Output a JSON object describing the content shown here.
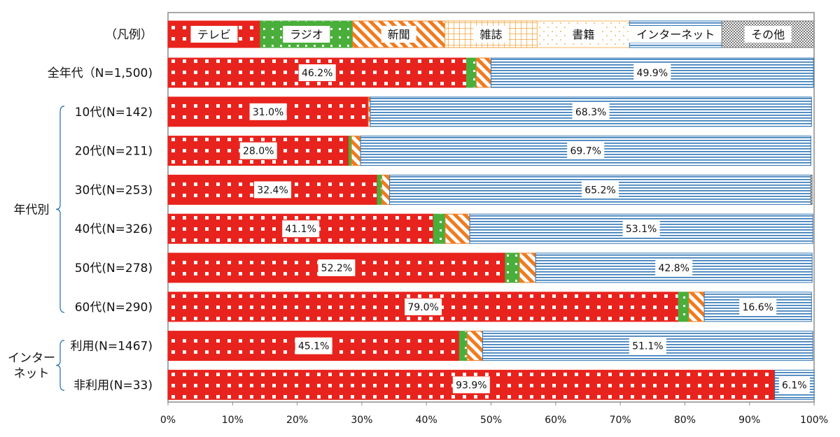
{
  "chart_data": {
    "type": "bar",
    "orientation": "horizontal",
    "stacked": true,
    "legend_label": "（凡例）",
    "categories": [
      "全年代（N=1,500)",
      "10代(N=142)",
      "20代(N=211)",
      "30代(N=253)",
      "40代(N=326)",
      "50代(N=278)",
      "60代(N=290)",
      "利用(N=1467)",
      "非利用(N=33)"
    ],
    "series": [
      {
        "name": "テレビ",
        "color": "#e8231d",
        "pattern": "white-squares",
        "values": [
          46.2,
          31.0,
          28.0,
          32.4,
          41.1,
          52.2,
          79.0,
          45.1,
          93.9
        ]
      },
      {
        "name": "ラジオ",
        "color": "#4aae3a",
        "pattern": "white-dots",
        "values": [
          1.5,
          0.0,
          0.4,
          0.7,
          1.8,
          2.2,
          1.6,
          1.2,
          0.0
        ]
      },
      {
        "name": "新聞",
        "color": "#f07b1f",
        "pattern": "diagonal-stripes",
        "values": [
          2.3,
          0.3,
          1.4,
          1.2,
          3.8,
          2.5,
          2.4,
          2.4,
          0.0
        ]
      },
      {
        "name": "雑誌",
        "color": "#f0a33c",
        "pattern": "grid",
        "values": [
          0.0,
          0.0,
          0.0,
          0.0,
          0.0,
          0.0,
          0.0,
          0.0,
          0.0
        ]
      },
      {
        "name": "書籍",
        "color": "#f4b55c",
        "pattern": "sparse-dots",
        "values": [
          0.0,
          0.0,
          0.0,
          0.0,
          0.0,
          0.0,
          0.0,
          0.0,
          0.0
        ]
      },
      {
        "name": "インターネット",
        "color": "#2e75b6",
        "pattern": "horizontal-lines",
        "values": [
          49.9,
          68.3,
          69.7,
          65.2,
          53.1,
          42.8,
          16.6,
          51.1,
          6.1
        ]
      },
      {
        "name": "その他",
        "color": "#888888",
        "pattern": "checker",
        "values": [
          0.0,
          0.0,
          0.0,
          0.2,
          0.0,
          0.0,
          0.0,
          0.0,
          0.0
        ]
      }
    ],
    "data_labels": [
      {
        "row": 0,
        "series": "テレビ",
        "text": "46.2%"
      },
      {
        "row": 0,
        "series": "インターネット",
        "text": "49.9%"
      },
      {
        "row": 1,
        "series": "テレビ",
        "text": "31.0%"
      },
      {
        "row": 1,
        "series": "インターネット",
        "text": "68.3%"
      },
      {
        "row": 2,
        "series": "テレビ",
        "text": "28.0%"
      },
      {
        "row": 2,
        "series": "インターネット",
        "text": "69.7%"
      },
      {
        "row": 3,
        "series": "テレビ",
        "text": "32.4%"
      },
      {
        "row": 3,
        "series": "インターネット",
        "text": "65.2%"
      },
      {
        "row": 4,
        "series": "テレビ",
        "text": "41.1%"
      },
      {
        "row": 4,
        "series": "インターネット",
        "text": "53.1%"
      },
      {
        "row": 5,
        "series": "テレビ",
        "text": "52.2%"
      },
      {
        "row": 5,
        "series": "インターネット",
        "text": "42.8%"
      },
      {
        "row": 6,
        "series": "テレビ",
        "text": "79.0%"
      },
      {
        "row": 6,
        "series": "インターネット",
        "text": "16.6%"
      },
      {
        "row": 7,
        "series": "テレビ",
        "text": "45.1%"
      },
      {
        "row": 7,
        "series": "インターネット",
        "text": "51.1%"
      },
      {
        "row": 8,
        "series": "テレビ",
        "text": "93.9%"
      },
      {
        "row": 8,
        "series": "インターネット",
        "text": "6.1%"
      }
    ],
    "groups": [
      {
        "label": "年代別",
        "rows": [
          1,
          2,
          3,
          4,
          5,
          6
        ]
      },
      {
        "label": "インター\nネット",
        "rows": [
          7,
          8
        ]
      }
    ],
    "x_ticks": [
      "0%",
      "10%",
      "20%",
      "30%",
      "40%",
      "50%",
      "60%",
      "70%",
      "80%",
      "90%",
      "100%"
    ],
    "xlim": [
      0,
      100
    ],
    "grid": false,
    "legend_position": "top"
  }
}
